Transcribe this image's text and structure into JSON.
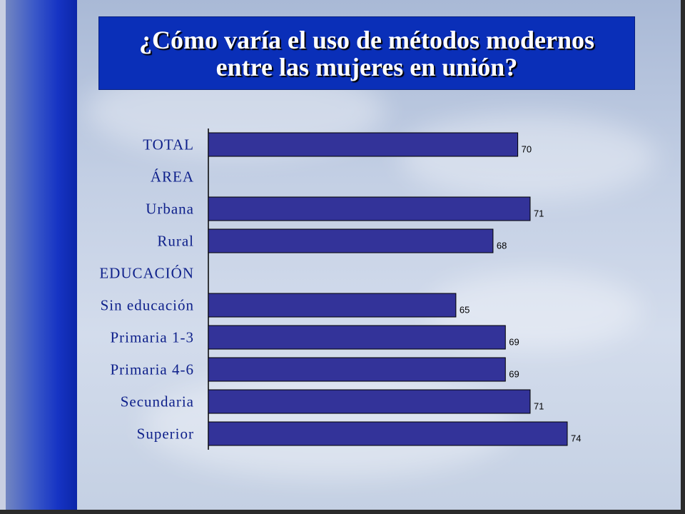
{
  "title": "¿Cómo varía el uso de métodos modernos entre las mujeres en unión?",
  "colors": {
    "bar_fill": "#333399",
    "bar_stroke": "#000000",
    "title_bg": "#0a2fb8",
    "label_color": "#0d1f8a"
  },
  "chart_data": {
    "type": "bar",
    "orientation": "horizontal",
    "categories": [
      "TOTAL",
      "ÁREA",
      "Urbana",
      "Rural",
      "EDUCACIÓN",
      "Sin educación",
      "Primaria 1-3",
      "Primaria 4-6",
      "Secundaria",
      "Superior"
    ],
    "values": [
      70,
      null,
      71,
      68,
      null,
      65,
      69,
      69,
      71,
      74
    ],
    "value_labels": [
      "70",
      "",
      "71",
      "68",
      "",
      "65",
      "69",
      "69",
      "71",
      "74"
    ],
    "xlim": [
      45,
      80
    ],
    "grid": false,
    "legend": "none"
  }
}
